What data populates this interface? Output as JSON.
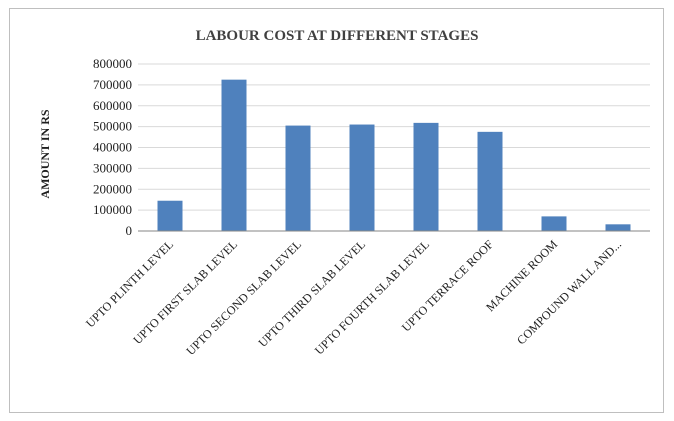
{
  "chart_data": {
    "type": "bar",
    "title": "LABOUR COST AT DIFFERENT STAGES",
    "xlabel": "",
    "ylabel": "AMOUNT IN RS",
    "ylim": [
      0,
      800000
    ],
    "yticks": [
      "0",
      "100000",
      "200000",
      "300000",
      "400000",
      "500000",
      "600000",
      "700000",
      "800000"
    ],
    "grid": true,
    "legend": "none",
    "bar_color": "#4f81bd",
    "categories": [
      "UPTO PLINTH LEVEL",
      "UPTO FIRST SLAB LEVEL",
      "UPTO SECOND SLAB LEVEL",
      "UPTO THIRD SLAB LEVEL",
      "UPTO FOURTH SLAB LEVEL",
      "UPTO TERRACE ROOF",
      "MACHINE ROOM",
      "COMPOUND WALL AND..."
    ],
    "values": [
      145000,
      725000,
      505000,
      510000,
      518000,
      475000,
      70000,
      32000
    ]
  }
}
